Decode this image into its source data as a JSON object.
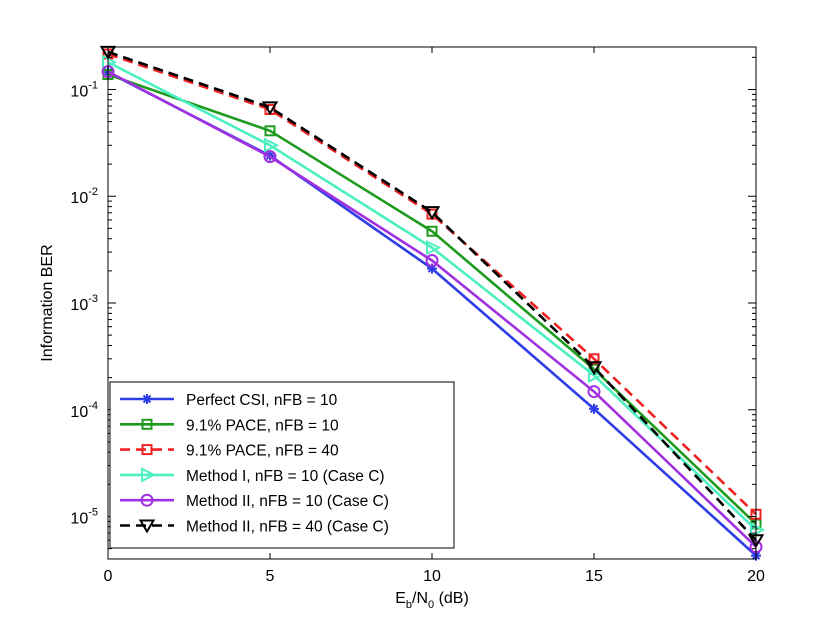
{
  "chart_data": {
    "type": "line",
    "title": "",
    "xlabel": {
      "main": "E",
      "sub1": "b",
      "mid": "/N",
      "sub2": "0",
      "tail": " (dB)"
    },
    "ylabel": "Information BER",
    "yscale": "log",
    "xlim": [
      0,
      20
    ],
    "ylim": [
      4e-06,
      0.25
    ],
    "xticks": [
      0,
      5,
      10,
      15,
      20
    ],
    "xtick_labels": [
      "0",
      "5",
      "10",
      "15",
      "20"
    ],
    "yticks": [
      -1,
      -2,
      -3,
      -4,
      -5
    ],
    "ytick_labels": [
      {
        "base": "10",
        "exp": "-1"
      },
      {
        "base": "10",
        "exp": "-2"
      },
      {
        "base": "10",
        "exp": "-3"
      },
      {
        "base": "10",
        "exp": "-4"
      },
      {
        "base": "10",
        "exp": "-5"
      }
    ],
    "grid": false,
    "legend_position": "bottom-left",
    "x": [
      0,
      5,
      10,
      15,
      20
    ],
    "series": [
      {
        "name": "Perfect CSI, nFB = 10",
        "color": "#2e3ee6",
        "dash": "solid",
        "marker": "asterisk",
        "values": [
          0.145,
          0.024,
          0.0021,
          0.000102,
          4.3e-06
        ]
      },
      {
        "name": "9.1% PACE, nFB = 10",
        "color": "#1e9a1e",
        "dash": "solid",
        "marker": "square",
        "values": [
          0.138,
          0.041,
          0.0047,
          0.00024,
          8.5e-06
        ]
      },
      {
        "name": "9.1% PACE, nFB = 40",
        "color": "#ee2020",
        "dash": "dashed",
        "marker": "square",
        "values": [
          0.215,
          0.065,
          0.0068,
          0.0003,
          1.05e-05
        ]
      },
      {
        "name": "Method I, nFB = 10 (Case C)",
        "color": "#4cf0c0",
        "dash": "solid",
        "marker": "triangle-right",
        "values": [
          0.18,
          0.03,
          0.0033,
          0.00021,
          7.5e-06
        ]
      },
      {
        "name": "Method II, nFB = 10 (Case C)",
        "color": "#a030e0",
        "dash": "solid",
        "marker": "circle",
        "values": [
          0.147,
          0.0235,
          0.0025,
          0.000148,
          5.2e-06
        ]
      },
      {
        "name": "Method II, nFB = 40 (Case C)",
        "color": "#000000",
        "dash": "dashed",
        "marker": "triangle-down",
        "values": [
          0.225,
          0.068,
          0.0071,
          0.00025,
          6e-06
        ]
      }
    ]
  }
}
